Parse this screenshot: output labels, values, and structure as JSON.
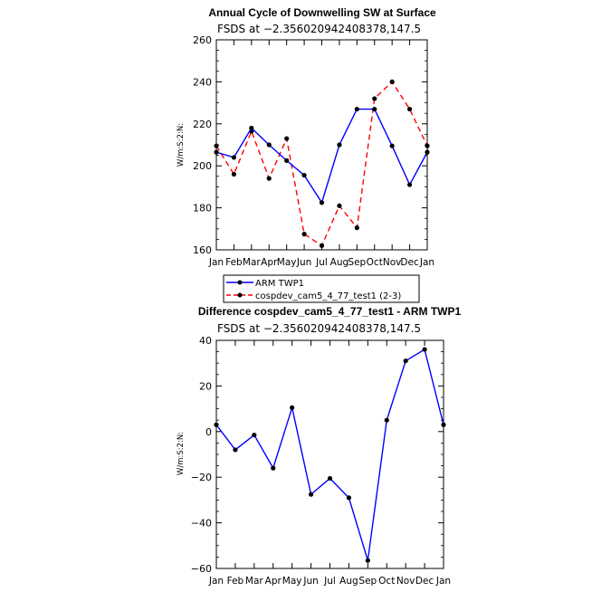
{
  "chart_data": [
    {
      "type": "line",
      "title": "Annual Cycle of Downwelling SW at Surface",
      "subtitle": "FSDS at −2.356020942408378,147.5",
      "xlabel": "",
      "ylabel": "W/m:S:2:N:",
      "categories": [
        "Jan",
        "Feb",
        "Mar",
        "Apr",
        "May",
        "Jun",
        "Jul",
        "Aug",
        "Sep",
        "Oct",
        "Nov",
        "Dec",
        "Jan"
      ],
      "ylim": [
        160,
        260
      ],
      "yticks": [
        "160",
        "180",
        "200",
        "220",
        "240",
        "260"
      ],
      "series": [
        {
          "name": "ARM TWP1",
          "color": "#0000ff",
          "dash": "solid",
          "values": [
            206.5,
            204,
            218,
            210,
            202.5,
            195.5,
            182.5,
            210,
            227,
            227,
            209.5,
            191,
            206.5
          ]
        },
        {
          "name": "cospdev_cam5_4_77_test1 (2-3)",
          "color": "#ff0000",
          "dash": "dashed",
          "values": [
            209.5,
            196,
            216.5,
            194,
            213,
            167.5,
            162,
            181,
            170.5,
            232,
            240,
            227,
            209.5
          ]
        }
      ],
      "legend": "below-left"
    },
    {
      "type": "line",
      "title": "Difference cospdev_cam5_4_77_test1 - ARM TWP1",
      "subtitle": "FSDS at −2.356020942408378,147.5",
      "xlabel": "",
      "ylabel": "W/m:S:2:N:",
      "categories": [
        "Jan",
        "Feb",
        "Mar",
        "Apr",
        "May",
        "Jun",
        "Jul",
        "Aug",
        "Sep",
        "Oct",
        "Nov",
        "Dec",
        "Jan"
      ],
      "ylim": [
        -60,
        40
      ],
      "yticks": [
        "−60",
        "−40",
        "−20",
        "0",
        "20",
        "40"
      ],
      "series": [
        {
          "color": "#0000ff",
          "dash": "solid",
          "values": [
            3,
            -8,
            -1.5,
            -16,
            10.5,
            -27.5,
            -20.5,
            -29,
            -56.5,
            5,
            31,
            36,
            3
          ]
        }
      ]
    }
  ]
}
